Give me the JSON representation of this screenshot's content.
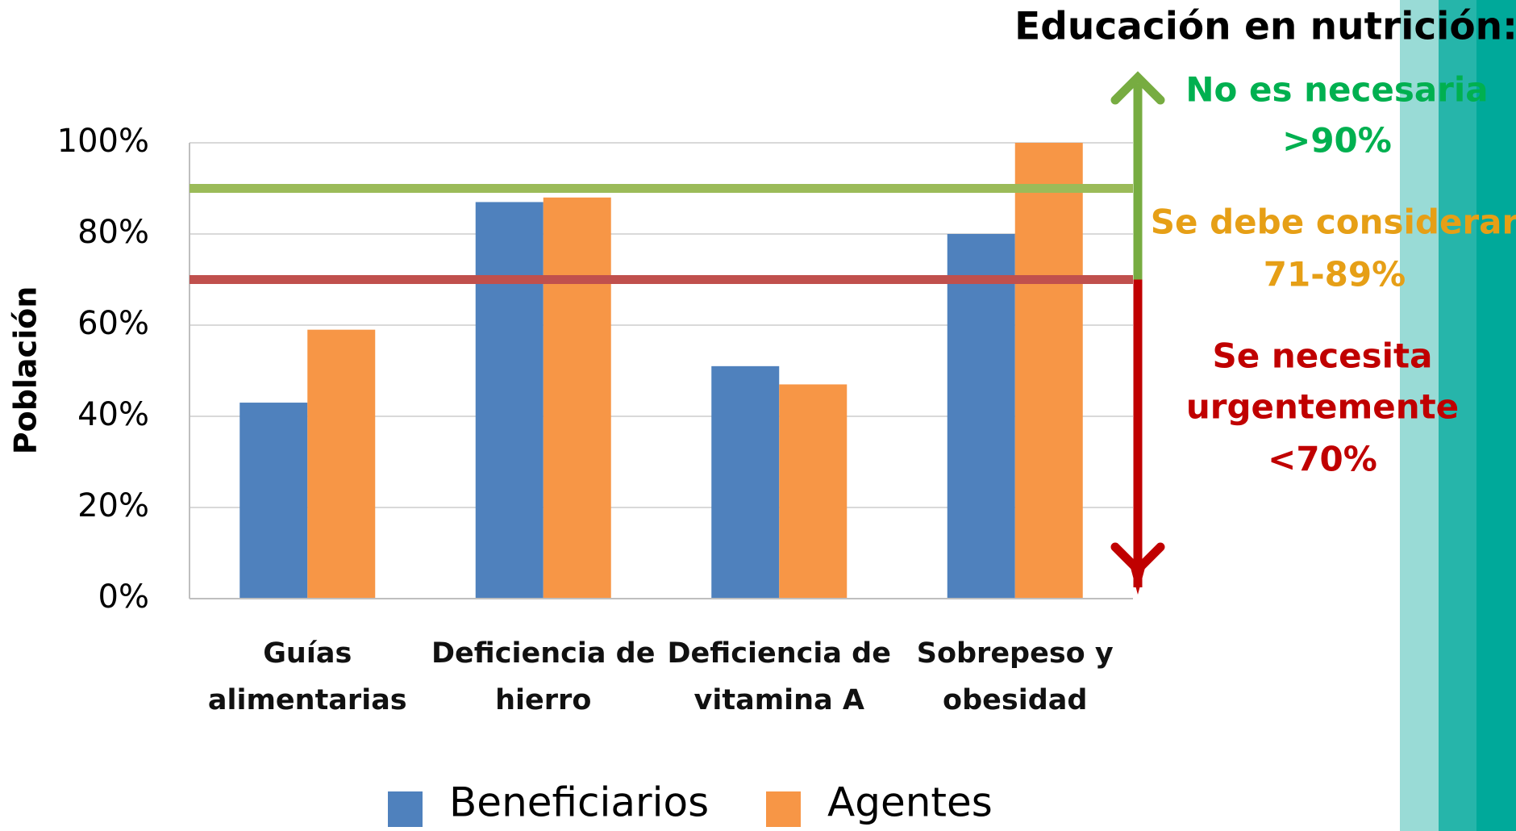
{
  "chart_data": {
    "type": "bar",
    "title": "Educación en nutrición:",
    "y_label": "Población",
    "categories": [
      "Guías alimentarias",
      "Deficiencia de hierro",
      "Deficiencia de vitamina A",
      "Sobrepeso y obesidad"
    ],
    "series": [
      {
        "name": "Beneficiarios",
        "color": "#4f81bd",
        "values": [
          43,
          87,
          51,
          80
        ]
      },
      {
        "name": "Agentes",
        "color": "#f79646",
        "values": [
          59,
          88,
          47,
          100
        ]
      }
    ],
    "ylim": [
      0,
      100
    ],
    "yticks": [
      {
        "value": 0,
        "label": "0%"
      },
      {
        "value": 20,
        "label": "20%"
      },
      {
        "value": 40,
        "label": "40%"
      },
      {
        "value": 60,
        "label": "60%"
      },
      {
        "value": 80,
        "label": "80%"
      },
      {
        "value": 100,
        "label": "100%"
      }
    ],
    "grid": true,
    "legend": "bottom",
    "reference_lines": [
      {
        "value": 90,
        "color": "#9bbb59"
      },
      {
        "value": 70,
        "color": "#c0504d"
      }
    ],
    "annotations": [
      {
        "text": "No es necesaria",
        "color": "#00b050"
      },
      {
        "text": ">90%",
        "color": "#00b050"
      },
      {
        "text": "Se debe considerar",
        "color": "#e69f16"
      },
      {
        "text": "71-89%",
        "color": "#e69f16"
      },
      {
        "text": "Se necesita",
        "color": "#c00000"
      },
      {
        "text": "urgentemente",
        "color": "#c00000"
      },
      {
        "text": "<70%",
        "color": "#c00000"
      }
    ]
  }
}
